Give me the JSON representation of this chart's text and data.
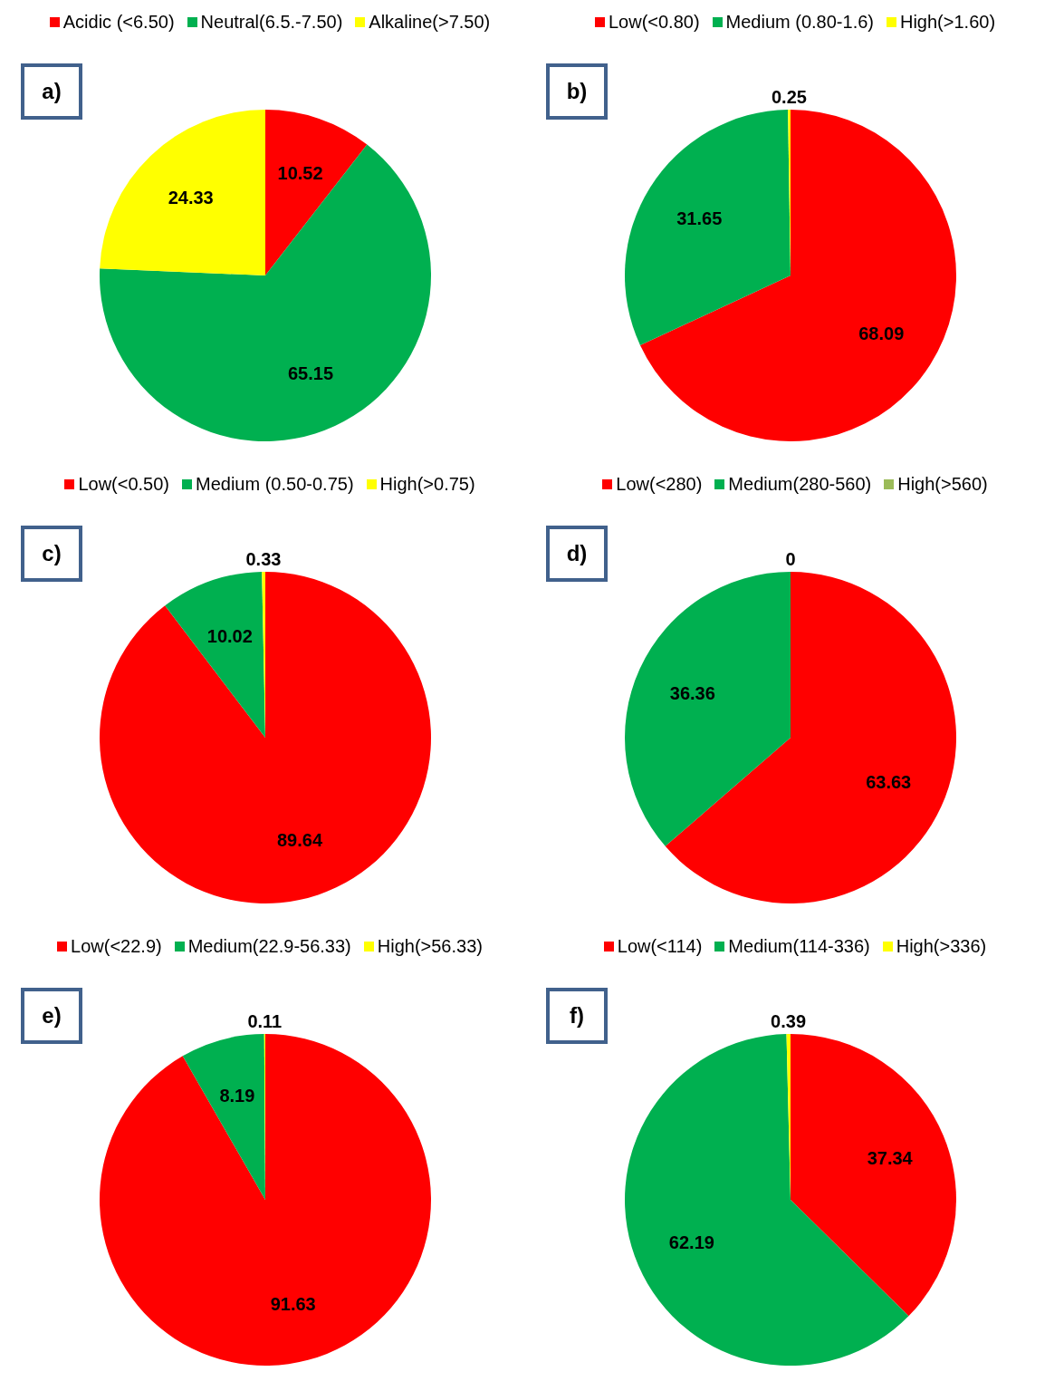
{
  "chart_data": [
    {
      "type": "pie",
      "title": "a)",
      "categories": [
        "Acidic (<6.50)",
        "Neutral(6.5.-7.50)",
        "Alkaline(>7.50)"
      ],
      "values": [
        10.52,
        65.15,
        24.33
      ],
      "colors": [
        "#ff0000",
        "#00b050",
        "#ffff00"
      ],
      "data_labels": true,
      "legend": "top"
    },
    {
      "type": "pie",
      "title": "b)",
      "categories": [
        "Low(<0.80)",
        "Medium (0.80-1.6)",
        "High(>1.60)"
      ],
      "values": [
        68.09,
        31.65,
        0.25
      ],
      "colors": [
        "#ff0000",
        "#00b050",
        "#ffff00"
      ],
      "data_labels": true,
      "legend": "top"
    },
    {
      "type": "pie",
      "title": "c)",
      "categories": [
        "Low(<0.50)",
        "Medium (0.50-0.75)",
        "High(>0.75)"
      ],
      "values": [
        89.64,
        10.02,
        0.33
      ],
      "colors": [
        "#ff0000",
        "#00b050",
        "#ffff00"
      ],
      "data_labels": true,
      "legend": "top"
    },
    {
      "type": "pie",
      "title": "d)",
      "categories": [
        "Low(<280)",
        "Medium(280-560)",
        "High(>560)"
      ],
      "values": [
        63.63,
        36.36,
        0
      ],
      "value_labels": [
        "63.63",
        "36.36",
        "0"
      ],
      "colors": [
        "#ff0000",
        "#00b050",
        "#9bbb59"
      ],
      "legend": "top"
    },
    {
      "type": "pie",
      "title": "e)",
      "categories": [
        "Low(<22.9)",
        "Medium(22.9-56.33)",
        "High(>56.33)"
      ],
      "values": [
        91.63,
        8.19,
        0.11
      ],
      "colors": [
        "#ff0000",
        "#00b050",
        "#ffff00"
      ],
      "data_labels": true,
      "legend": "top"
    },
    {
      "type": "pie",
      "title": "f)",
      "categories": [
        "Low(<114)",
        "Medium(114-336)",
        "High(>336)"
      ],
      "values": [
        37.34,
        62.19,
        0.39
      ],
      "colors": [
        "#ff0000",
        "#00b050",
        "#ffff00"
      ],
      "data_labels": true,
      "legend": "top"
    }
  ]
}
